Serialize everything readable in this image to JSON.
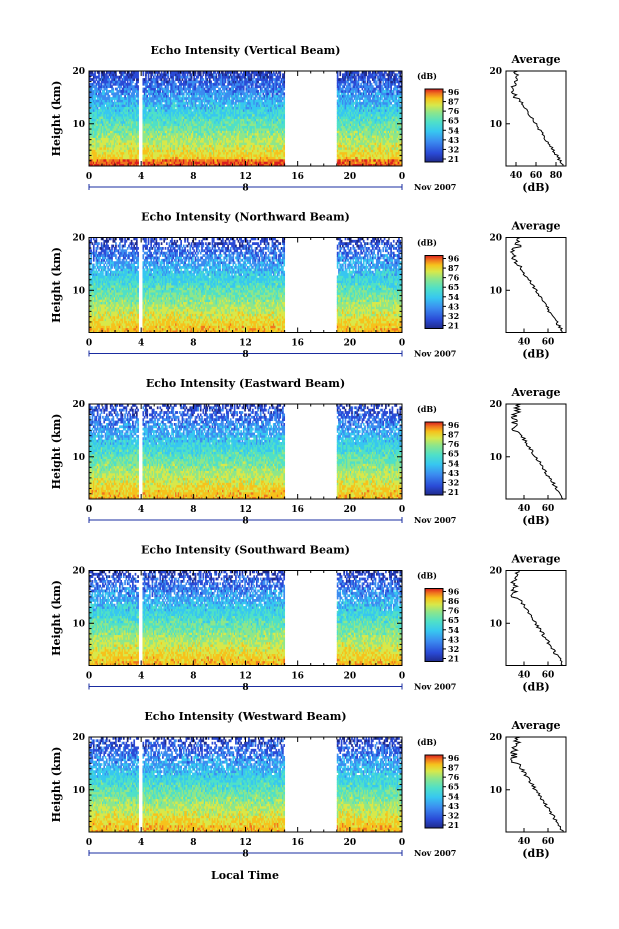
{
  "figure": {
    "xlabel": "Local Time",
    "xticks": [
      "0",
      "4",
      "8",
      "12",
      "16",
      "20",
      "0"
    ],
    "day_marker": "8",
    "date": "Nov 2007",
    "ylabel": "Height (km)",
    "yticks": [
      "10",
      "20"
    ],
    "colorbar_unit": "(dB)",
    "avg_title": "Average",
    "avg_xlabel": "(dB)"
  },
  "colors": {
    "scale": [
      "#1f2a8c",
      "#2a4ad6",
      "#3b8cf0",
      "#37c7f0",
      "#4fe0c8",
      "#8ee68a",
      "#d8e84a",
      "#f6c21c",
      "#f0741e",
      "#d91f1f"
    ]
  },
  "chart_data": [
    {
      "type": "heatmap",
      "title": "Echo Intensity (Vertical Beam)",
      "xlabel": "Local Time",
      "ylabel": "Height (km)",
      "xlim": [
        0,
        24
      ],
      "ylim": [
        2,
        20
      ],
      "data_gap_hours": [
        [
          3.8,
          4.1
        ],
        [
          15,
          19
        ]
      ],
      "colorbar_ticks": [
        "96",
        "87",
        "76",
        "65",
        "54",
        "43",
        "32",
        "21"
      ],
      "average_profile": {
        "xlabel": "(dB)",
        "xticks": [
          "40",
          "60",
          "80"
        ],
        "xlim": [
          30,
          90
        ],
        "ylim": [
          2,
          20
        ]
      }
    },
    {
      "type": "heatmap",
      "title": "Echo Intensity (Northward Beam)",
      "xlabel": "Local Time",
      "ylabel": "Height (km)",
      "xlim": [
        0,
        24
      ],
      "ylim": [
        2,
        20
      ],
      "data_gap_hours": [
        [
          3.8,
          4.1
        ],
        [
          15,
          19
        ]
      ],
      "colorbar_ticks": [
        "96",
        "87",
        "76",
        "65",
        "54",
        "43",
        "32",
        "21"
      ],
      "average_profile": {
        "xlabel": "(dB)",
        "xticks": [
          "40",
          "60"
        ],
        "xlim": [
          25,
          75
        ],
        "ylim": [
          2,
          20
        ]
      }
    },
    {
      "type": "heatmap",
      "title": "Echo Intensity (Eastward Beam)",
      "xlabel": "Local Time",
      "ylabel": "Height (km)",
      "xlim": [
        0,
        24
      ],
      "ylim": [
        2,
        20
      ],
      "data_gap_hours": [
        [
          3.8,
          4.1
        ],
        [
          15,
          19
        ]
      ],
      "colorbar_ticks": [
        "96",
        "87",
        "76",
        "65",
        "54",
        "43",
        "32",
        "21"
      ],
      "average_profile": {
        "xlabel": "(dB)",
        "xticks": [
          "40",
          "60"
        ],
        "xlim": [
          25,
          75
        ],
        "ylim": [
          2,
          20
        ]
      }
    },
    {
      "type": "heatmap",
      "title": "Echo Intensity (Southward Beam)",
      "xlabel": "Local Time",
      "ylabel": "Height (km)",
      "xlim": [
        0,
        24
      ],
      "ylim": [
        2,
        20
      ],
      "data_gap_hours": [
        [
          3.8,
          4.1
        ],
        [
          15,
          19
        ]
      ],
      "colorbar_ticks": [
        "96",
        "86",
        "76",
        "65",
        "54",
        "43",
        "32",
        "21"
      ],
      "average_profile": {
        "xlabel": "(dB)",
        "xticks": [
          "40",
          "60"
        ],
        "xlim": [
          25,
          75
        ],
        "ylim": [
          2,
          20
        ]
      }
    },
    {
      "type": "heatmap",
      "title": "Echo Intensity (Westward Beam)",
      "xlabel": "Local Time",
      "ylabel": "Height (km)",
      "xlim": [
        0,
        24
      ],
      "ylim": [
        2,
        20
      ],
      "data_gap_hours": [
        [
          3.8,
          4.1
        ],
        [
          15,
          19
        ]
      ],
      "colorbar_ticks": [
        "96",
        "87",
        "76",
        "65",
        "54",
        "43",
        "32",
        "21"
      ],
      "average_profile": {
        "xlabel": "(dB)",
        "xticks": [
          "40",
          "60"
        ],
        "xlim": [
          25,
          75
        ],
        "ylim": [
          2,
          20
        ]
      }
    }
  ]
}
